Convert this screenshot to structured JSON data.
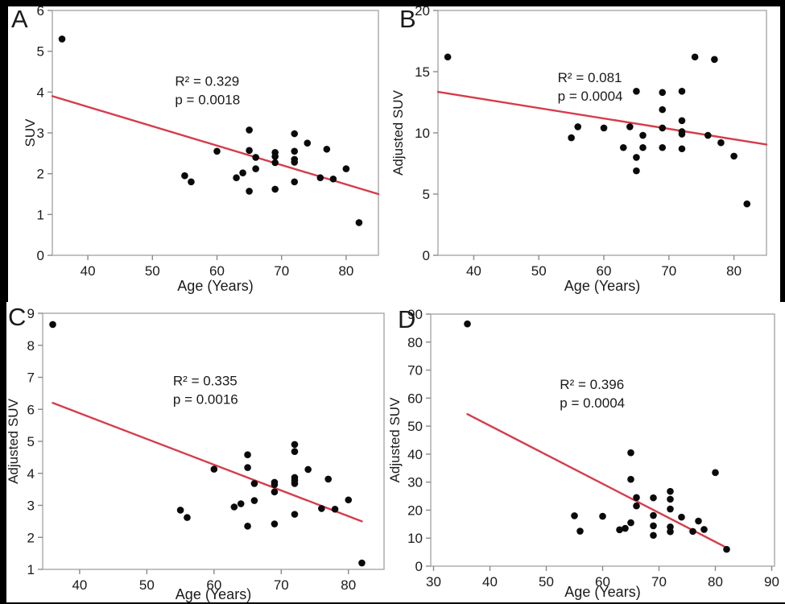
{
  "figure": {
    "background_color": "#000000",
    "panel_color": "#ffffff",
    "trend_line_color": "#d63c4a",
    "point_color": "#0a0a0a",
    "frame_color": "#a9a9a9",
    "tick_color": "#8a8a8a",
    "text_color": "#1a1a1a"
  },
  "chart_data": [
    {
      "id": "A",
      "panel_label": "A",
      "type": "scatter",
      "title": "",
      "xlabel": "Age (Years)",
      "ylabel": "SUV",
      "x_range": [
        34.5,
        85
      ],
      "y_range": [
        0,
        6
      ],
      "x_ticks": [
        40,
        50,
        60,
        70,
        80
      ],
      "y_ticks": [
        0,
        1,
        2,
        3,
        4,
        5,
        6
      ],
      "grid": false,
      "annotation": {
        "line1": "R² = 0.329",
        "line2": "p = 0.0018",
        "x": 53.5,
        "y": 4.15
      },
      "trend": {
        "x1": 34.5,
        "y1": 3.9,
        "x2": 85,
        "y2": 1.5
      },
      "points": [
        [
          36,
          5.3
        ],
        [
          55,
          1.95
        ],
        [
          56,
          1.8
        ],
        [
          60,
          2.55
        ],
        [
          63,
          1.9
        ],
        [
          64,
          2.02
        ],
        [
          65,
          3.07
        ],
        [
          65,
          2.57
        ],
        [
          65,
          1.57
        ],
        [
          66,
          2.4
        ],
        [
          66,
          2.12
        ],
        [
          69,
          2.52
        ],
        [
          69,
          2.42
        ],
        [
          69,
          2.27
        ],
        [
          69,
          1.62
        ],
        [
          72,
          2.98
        ],
        [
          72,
          2.55
        ],
        [
          72,
          2.35
        ],
        [
          72,
          2.28
        ],
        [
          72,
          1.8
        ],
        [
          74,
          2.75
        ],
        [
          76,
          1.9
        ],
        [
          77,
          2.6
        ],
        [
          78,
          1.87
        ],
        [
          80,
          2.12
        ],
        [
          82,
          0.8
        ]
      ]
    },
    {
      "id": "B",
      "panel_label": "B",
      "type": "scatter",
      "title": "",
      "xlabel": "Age (Years)",
      "ylabel": "Adjusted SUV",
      "x_range": [
        34.5,
        85
      ],
      "y_range": [
        0,
        20
      ],
      "x_ticks": [
        40,
        50,
        60,
        70,
        80
      ],
      "y_ticks": [
        0,
        5,
        10,
        15,
        20
      ],
      "grid": false,
      "annotation": {
        "line1": "R² = 0.081",
        "line2": "p = 0.0004",
        "x": 52.9,
        "y": 14.15
      },
      "trend": {
        "x1": 34.5,
        "y1": 13.35,
        "x2": 85,
        "y2": 9.05
      },
      "points": [
        [
          36,
          16.2
        ],
        [
          55,
          9.6
        ],
        [
          56,
          10.5
        ],
        [
          60,
          10.4
        ],
        [
          63,
          8.8
        ],
        [
          64,
          10.5
        ],
        [
          65,
          13.4
        ],
        [
          65,
          8.0
        ],
        [
          65,
          6.9
        ],
        [
          66,
          9.8
        ],
        [
          66,
          8.8
        ],
        [
          69,
          13.3
        ],
        [
          69,
          11.9
        ],
        [
          69,
          10.4
        ],
        [
          69,
          8.8
        ],
        [
          72,
          13.4
        ],
        [
          72,
          11.0
        ],
        [
          72,
          10.1
        ],
        [
          72,
          9.9
        ],
        [
          72,
          8.7
        ],
        [
          74,
          16.2
        ],
        [
          76,
          9.8
        ],
        [
          77,
          16.0
        ],
        [
          78,
          9.2
        ],
        [
          80,
          8.1
        ],
        [
          82,
          4.2
        ]
      ]
    },
    {
      "id": "C",
      "panel_label": "C",
      "type": "scatter",
      "title": "",
      "xlabel": "Age (Years)",
      "ylabel": "Adjusted SUV",
      "x_range": [
        34.5,
        85.3
      ],
      "y_range": [
        1,
        9
      ],
      "x_ticks": [
        40,
        50,
        60,
        70,
        80
      ],
      "y_ticks": [
        1,
        2,
        3,
        4,
        5,
        6,
        7,
        8,
        9
      ],
      "grid": false,
      "annotation": {
        "line1": "R² = 0.335",
        "line2": "p = 0.0016",
        "x": 53.9,
        "y": 6.75
      },
      "trend": {
        "x1": 36,
        "y1": 6.2,
        "x2": 82,
        "y2": 2.5
      },
      "points": [
        [
          36,
          8.65
        ],
        [
          55,
          2.85
        ],
        [
          56,
          2.62
        ],
        [
          60,
          4.13
        ],
        [
          63,
          2.95
        ],
        [
          64,
          3.05
        ],
        [
          65,
          4.58
        ],
        [
          65,
          4.18
        ],
        [
          65,
          2.35
        ],
        [
          66,
          3.68
        ],
        [
          66,
          3.15
        ],
        [
          69,
          3.72
        ],
        [
          69,
          3.65
        ],
        [
          69,
          3.42
        ],
        [
          69,
          2.42
        ],
        [
          72,
          4.9
        ],
        [
          72,
          4.68
        ],
        [
          72,
          3.87
        ],
        [
          72,
          3.78
        ],
        [
          72,
          3.68
        ],
        [
          72,
          2.72
        ],
        [
          74,
          4.12
        ],
        [
          76,
          2.9
        ],
        [
          77,
          3.82
        ],
        [
          78,
          2.88
        ],
        [
          80,
          3.17
        ],
        [
          82,
          1.2
        ]
      ]
    },
    {
      "id": "D",
      "panel_label": "D",
      "type": "scatter",
      "title": "",
      "xlabel": "Age (Years)",
      "ylabel": "Adjusted SUV",
      "x_range": [
        29.5,
        90.5
      ],
      "y_range": [
        0,
        90
      ],
      "x_ticks": [
        30,
        40,
        50,
        60,
        70,
        80,
        90
      ],
      "y_ticks": [
        0,
        10,
        20,
        30,
        40,
        50,
        60,
        70,
        80,
        90
      ],
      "grid": false,
      "annotation": {
        "line1": "R² = 0.396",
        "line2": "p = 0.0004",
        "x": 52.4,
        "y": 63.3
      },
      "trend": {
        "x1": 36,
        "y1": 54.3,
        "x2": 82,
        "y2": 6.6
      },
      "points": [
        [
          36,
          86.5
        ],
        [
          55,
          18
        ],
        [
          56,
          12.5
        ],
        [
          60,
          17.8
        ],
        [
          63,
          13
        ],
        [
          64,
          13.5
        ],
        [
          65,
          40.5
        ],
        [
          65,
          31
        ],
        [
          65,
          15.5
        ],
        [
          66,
          24.5
        ],
        [
          66,
          21.5
        ],
        [
          69,
          24.4
        ],
        [
          69,
          18.1
        ],
        [
          69,
          14.4
        ],
        [
          69,
          11
        ],
        [
          72,
          26.7
        ],
        [
          72,
          23.9
        ],
        [
          72,
          20.4
        ],
        [
          72,
          14
        ],
        [
          72,
          12.3
        ],
        [
          74,
          17.5
        ],
        [
          76,
          12.4
        ],
        [
          77,
          16.1
        ],
        [
          78,
          13.1
        ],
        [
          80,
          33.4
        ],
        [
          82,
          6
        ]
      ]
    }
  ]
}
